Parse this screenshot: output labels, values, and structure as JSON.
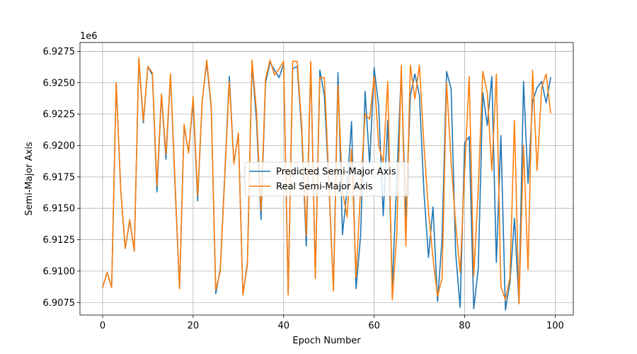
{
  "chart_data": {
    "type": "line",
    "xlabel": "Epoch Number",
    "ylabel": "Semi-Major Axis",
    "y_offset_label": "1e6",
    "xlim": [
      -5,
      104
    ],
    "ylim": [
      6906500,
      6928200
    ],
    "x_ticks": [
      0,
      20,
      40,
      60,
      80,
      100
    ],
    "x_tick_labels": [
      "0",
      "20",
      "40",
      "60",
      "80",
      "100"
    ],
    "y_ticks": [
      6907500,
      6910000,
      6912500,
      6915000,
      6917500,
      6920000,
      6922500,
      6925000,
      6927500
    ],
    "y_tick_labels": [
      "6.9075",
      "6.9100",
      "6.9125",
      "6.9150",
      "6.9175",
      "6.9200",
      "6.9225",
      "6.9250",
      "6.9275"
    ],
    "grid": true,
    "legend_position": "center",
    "x": [
      0,
      1,
      2,
      3,
      4,
      5,
      6,
      7,
      8,
      9,
      10,
      11,
      12,
      13,
      14,
      15,
      16,
      17,
      18,
      19,
      20,
      21,
      22,
      23,
      24,
      25,
      26,
      27,
      28,
      29,
      30,
      31,
      32,
      33,
      34,
      35,
      36,
      37,
      38,
      39,
      40,
      41,
      42,
      43,
      44,
      45,
      46,
      47,
      48,
      49,
      50,
      51,
      52,
      53,
      54,
      55,
      56,
      57,
      58,
      59,
      60,
      61,
      62,
      63,
      64,
      65,
      66,
      67,
      68,
      69,
      70,
      71,
      72,
      73,
      74,
      75,
      76,
      77,
      78,
      79,
      80,
      81,
      82,
      83,
      84,
      85,
      86,
      87,
      88,
      89,
      90,
      91,
      92,
      93,
      94,
      95,
      96,
      97,
      98,
      99
    ],
    "series": [
      {
        "name": "Predicted Semi-Major Axis",
        "color": "#1f77b4",
        "values": [
          6908700,
          6909900,
          6908700,
          6925000,
          6916500,
          6911800,
          6914000,
          6911600,
          6926800,
          6921800,
          6926300,
          6925600,
          6916300,
          6924000,
          6918900,
          6925600,
          6916800,
          6908600,
          6921500,
          6919500,
          6923500,
          6915600,
          6923500,
          6926600,
          6923000,
          6908200,
          6910200,
          6917800,
          6925500,
          6918600,
          6920900,
          6908100,
          6910700,
          6926500,
          6922000,
          6914100,
          6925000,
          6926600,
          6926000,
          6925400,
          6926500,
          6908200,
          6926100,
          6926300,
          6921000,
          6912000,
          6926500,
          6909500,
          6926000,
          6924000,
          6916800,
          6908500,
          6925800,
          6912900,
          6916500,
          6921900,
          6908600,
          6912800,
          6924300,
          6918500,
          6926200,
          6923100,
          6914400,
          6922000,
          6908800,
          6917300,
          6926000,
          6914100,
          6924000,
          6925700,
          6924000,
          6916300,
          6911100,
          6915100,
          6907600,
          6912500,
          6925900,
          6924500,
          6911500,
          6907100,
          6920200,
          6920700,
          6907000,
          6910200,
          6924200,
          6921600,
          6925500,
          6910700,
          6920800,
          6906900,
          6909100,
          6914200,
          6907400,
          6925100,
          6917000,
          6923500,
          6924600,
          6925100,
          6923400,
          6925400
        ]
      },
      {
        "name": "Real Semi-Major Axis",
        "color": "#ff7f0e",
        "values": [
          6908700,
          6909900,
          6908700,
          6925000,
          6916500,
          6911800,
          6914100,
          6911600,
          6927000,
          6922000,
          6926300,
          6925800,
          6916800,
          6924100,
          6919300,
          6925700,
          6917200,
          6908600,
          6921700,
          6919400,
          6923900,
          6916000,
          6923500,
          6926800,
          6923200,
          6908500,
          6910000,
          6917600,
          6925100,
          6918500,
          6921000,
          6908100,
          6910500,
          6926800,
          6922700,
          6914800,
          6925300,
          6926800,
          6925600,
          6926100,
          6926700,
          6908100,
          6926700,
          6926700,
          6921500,
          6912800,
          6926700,
          6909400,
          6925400,
          6925400,
          6917200,
          6908400,
          6924800,
          6916400,
          6914300,
          6919700,
          6909500,
          6916600,
          6922500,
          6922100,
          6925500,
          6920000,
          6918600,
          6925100,
          6907700,
          6912900,
          6926400,
          6912000,
          6926400,
          6923700,
          6926400,
          6920000,
          6914800,
          6911000,
          6908000,
          6909400,
          6925000,
          6918700,
          6913800,
          6909900,
          6918000,
          6925500,
          6909600,
          6916500,
          6925900,
          6924200,
          6918000,
          6925700,
          6908800,
          6907700,
          6909500,
          6922000,
          6907400,
          6920000,
          6910100,
          6926000,
          6918000,
          6924600,
          6925700,
          6922600
        ]
      }
    ]
  }
}
